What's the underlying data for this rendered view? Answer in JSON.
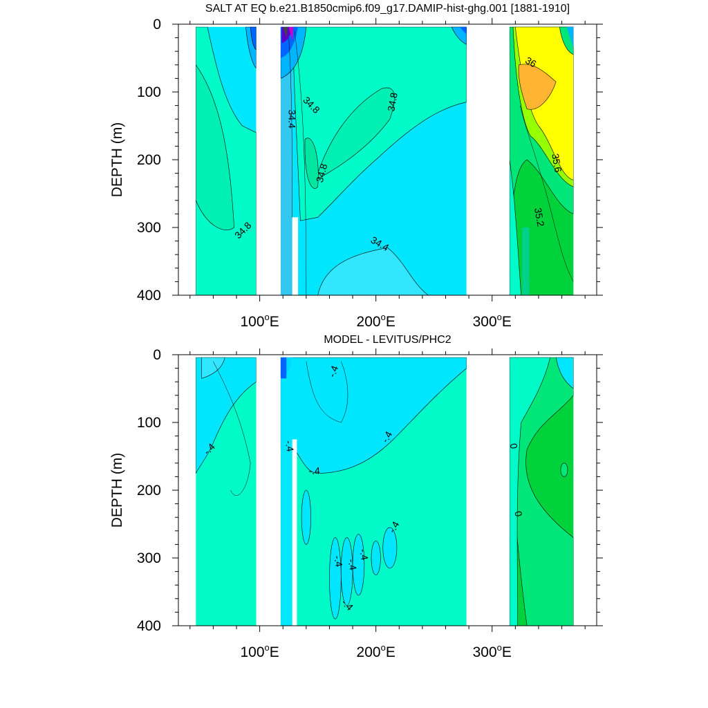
{
  "chart_data": [
    {
      "type": "contour",
      "title": "SALT AT EQ b.e21.B1850cmip6.f09_g17.DAMIP-hist-ghg.001 [1881-1910]",
      "xlabel": "",
      "ylabel": "DEPTH (m)",
      "xlim": [
        30,
        390
      ],
      "ylim": [
        400,
        0
      ],
      "x_ticks": [
        {
          "value": 100,
          "label": "100°E"
        },
        {
          "value": 200,
          "label": "200°E"
        },
        {
          "value": 300,
          "label": "300°E"
        }
      ],
      "y_ticks": [
        0,
        100,
        200,
        300,
        400
      ],
      "ocean_basins_lon": [
        [
          45,
          97
        ],
        [
          118,
          278
        ],
        [
          315,
          370
        ]
      ],
      "fill_colors": {
        "base": "#00fac8",
        "low": "#00e6ff",
        "lower": "#00b4ff",
        "lowest": "#0064ff",
        "deep_low": "#5a00c8",
        "high1": "#00e678",
        "high2": "#00d23c",
        "high3": "#96ff00",
        "high4": "#ffff00",
        "high5": "#ffb432"
      },
      "contour_labels": [
        {
          "text": "34.8",
          "lon": 86,
          "depth": 305,
          "angle": -45
        },
        {
          "text": "34.4",
          "lon": 127,
          "depth": 140,
          "angle": 90
        },
        {
          "text": "34.8",
          "lon": 144,
          "depth": 120,
          "angle": 45
        },
        {
          "text": "34.8",
          "lon": 215,
          "depth": 115,
          "angle": -80
        },
        {
          "text": "34.8",
          "lon": 154,
          "depth": 220,
          "angle": -75
        },
        {
          "text": "34.4",
          "lon": 203,
          "depth": 325,
          "angle": 30
        },
        {
          "text": "36",
          "lon": 333,
          "depth": 57,
          "angle": 30
        },
        {
          "text": "35.6",
          "lon": 355,
          "depth": 205,
          "angle": 80
        },
        {
          "text": "35.2",
          "lon": 340,
          "depth": 285,
          "angle": 80
        }
      ]
    },
    {
      "type": "contour",
      "title": "MODEL - LEVITUS/PHC2",
      "xlabel": "",
      "ylabel": "DEPTH (m)",
      "xlim": [
        30,
        390
      ],
      "ylim": [
        400,
        0
      ],
      "x_ticks": [
        {
          "value": 100,
          "label": "100°E"
        },
        {
          "value": 200,
          "label": "200°E"
        },
        {
          "value": 300,
          "label": "300°E"
        }
      ],
      "y_ticks": [
        0,
        100,
        200,
        300,
        400
      ],
      "ocean_basins_lon": [
        [
          45,
          97
        ],
        [
          118,
          278
        ],
        [
          315,
          370
        ]
      ],
      "contour_labels": [
        {
          "text": "-.4",
          "lon": 57,
          "depth": 140,
          "angle": -45
        },
        {
          "text": "-.4",
          "lon": 164,
          "depth": 25,
          "angle": -70
        },
        {
          "text": "-.4",
          "lon": 125,
          "depth": 135,
          "angle": 80
        },
        {
          "text": "-.4",
          "lon": 147,
          "depth": 172,
          "angle": 0
        },
        {
          "text": "-.4",
          "lon": 210,
          "depth": 122,
          "angle": -60
        },
        {
          "text": "-.4",
          "lon": 216,
          "depth": 255,
          "angle": -60
        },
        {
          "text": "-.4",
          "lon": 167,
          "depth": 305,
          "angle": 80
        },
        {
          "text": "-.4",
          "lon": 179,
          "depth": 310,
          "angle": 80
        },
        {
          "text": "-.4",
          "lon": 189,
          "depth": 295,
          "angle": 80
        },
        {
          "text": "-.4",
          "lon": 175,
          "depth": 370,
          "angle": 45
        },
        {
          "text": "0",
          "lon": 318,
          "depth": 135,
          "angle": 80
        },
        {
          "text": "0",
          "lon": 322,
          "depth": 235,
          "angle": 80
        }
      ]
    }
  ]
}
